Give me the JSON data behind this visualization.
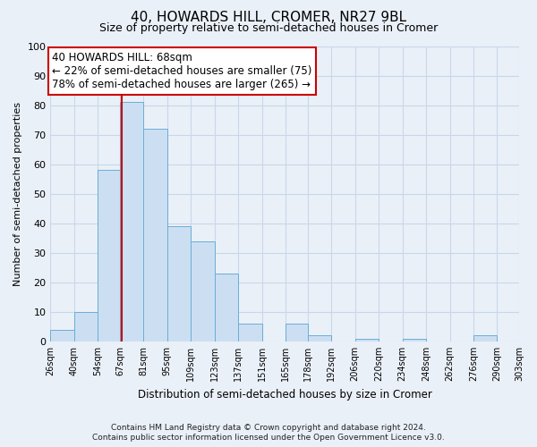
{
  "title": "40, HOWARDS HILL, CROMER, NR27 9BL",
  "subtitle": "Size of property relative to semi-detached houses in Cromer",
  "xlabel": "Distribution of semi-detached houses by size in Cromer",
  "ylabel": "Number of semi-detached properties",
  "footer_line1": "Contains HM Land Registry data © Crown copyright and database right 2024.",
  "footer_line2": "Contains public sector information licensed under the Open Government Licence v3.0.",
  "bins": [
    26,
    40,
    54,
    67,
    81,
    95,
    109,
    123,
    137,
    151,
    165,
    178,
    192,
    206,
    220,
    234,
    248,
    262,
    276,
    290,
    303
  ],
  "bin_labels": [
    "26sqm",
    "40sqm",
    "54sqm",
    "67sqm",
    "81sqm",
    "95sqm",
    "109sqm",
    "123sqm",
    "137sqm",
    "151sqm",
    "165sqm",
    "178sqm",
    "192sqm",
    "206sqm",
    "220sqm",
    "234sqm",
    "248sqm",
    "262sqm",
    "276sqm",
    "290sqm",
    "303sqm"
  ],
  "counts": [
    4,
    10,
    58,
    81,
    72,
    39,
    34,
    23,
    6,
    0,
    6,
    2,
    0,
    1,
    0,
    1,
    0,
    0,
    2,
    0,
    0
  ],
  "bar_color": "#ccdff2",
  "bar_edgecolor": "#6aaed6",
  "vline_x": 68,
  "vline_color": "#cc0000",
  "ylim": [
    0,
    100
  ],
  "yticks": [
    0,
    10,
    20,
    30,
    40,
    50,
    60,
    70,
    80,
    90,
    100
  ],
  "annotation_title": "40 HOWARDS HILL: 68sqm",
  "annotation_line1": "← 22% of semi-detached houses are smaller (75)",
  "annotation_line2": "78% of semi-detached houses are larger (265) →",
  "annotation_box_facecolor": "#ffffff",
  "annotation_box_edgecolor": "#cc0000",
  "grid_color": "#c8d8ea",
  "background_color": "#eaf0f8",
  "title_fontsize": 11,
  "subtitle_fontsize": 9,
  "ann_fontsize": 8.5
}
